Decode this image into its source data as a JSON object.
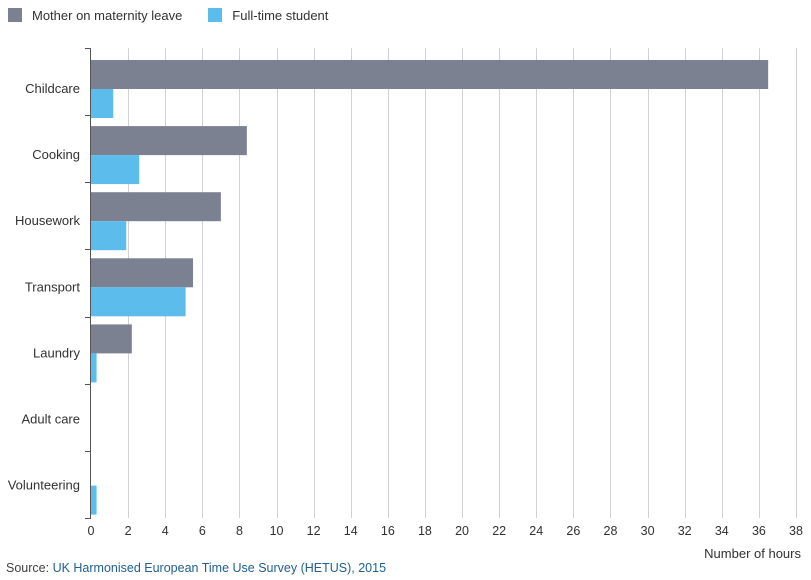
{
  "legend": [
    {
      "name": "Mother on maternity leave",
      "color": "#7c8191"
    },
    {
      "name": "Full-time student",
      "color": "#5cbcec"
    }
  ],
  "source": {
    "prefix": "Source: ",
    "link_text": "UK Harmonised European Time Use Survey (HETUS), 2015"
  },
  "chart_data": {
    "type": "bar",
    "orientation": "horizontal",
    "xlabel": "Number of hours",
    "xlim": [
      0,
      38
    ],
    "x_ticks": [
      0,
      2,
      4,
      6,
      8,
      10,
      12,
      14,
      16,
      18,
      20,
      22,
      24,
      26,
      28,
      30,
      32,
      34,
      36,
      38
    ],
    "grid": true,
    "legend_placement": "top-left",
    "categories": [
      "Childcare",
      "Cooking",
      "Housework",
      "Transport",
      "Laundry",
      "Adult care",
      "Volunteering"
    ],
    "series": [
      {
        "name": "Mother on maternity leave",
        "color": "#7c8191",
        "values": [
          36.5,
          8.4,
          7.0,
          5.5,
          2.2,
          0.0,
          0.0
        ]
      },
      {
        "name": "Full-time student",
        "color": "#5cbcec",
        "values": [
          1.2,
          2.6,
          1.9,
          5.1,
          0.3,
          0.0,
          0.3
        ]
      }
    ]
  }
}
